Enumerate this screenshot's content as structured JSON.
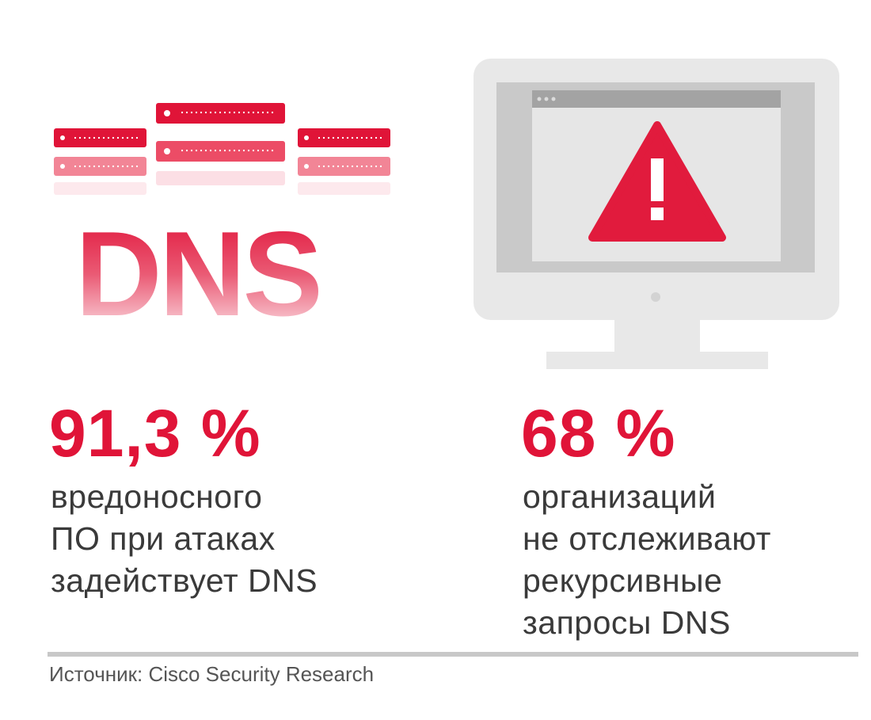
{
  "dns_icon": {
    "label": "DNS",
    "colors": {
      "server_front": "#e01438",
      "server_faded": "#f28596",
      "text_top": "#e1163c"
    }
  },
  "monitor_icon": {
    "colors": {
      "frame": "#e8e8e8",
      "screen": "#c9c9c9",
      "window": "#e6e6e6",
      "titlebar": "#a3a3a3",
      "warning": "#e11b3d"
    }
  },
  "stats": [
    {
      "value": "91,3 %",
      "lines": [
        "вредоносного",
        "ПО при атаках",
        "задействует DNS"
      ]
    },
    {
      "value": "68 %",
      "lines": [
        "организаций",
        "не отслеживают",
        "рекурсивные",
        "запросы DNS"
      ]
    }
  ],
  "source": "Источник: Cisco Security Research",
  "colors": {
    "accent": "#e01438",
    "body_text": "#3a3a3a",
    "divider": "#c8c8c8"
  }
}
